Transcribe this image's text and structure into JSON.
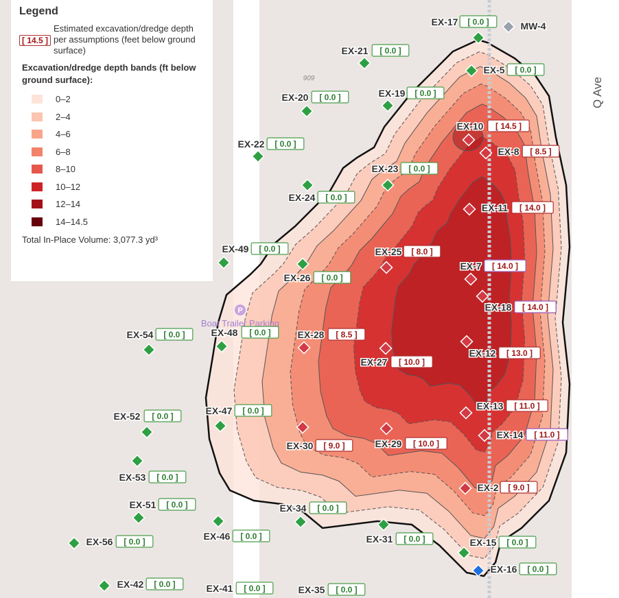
{
  "legend": {
    "title": "Legend",
    "sample_label": "[ 14.5 ]",
    "sample_text": "Estimated excavation/dredge depth per assumptions (feet below ground surface)",
    "bands_heading": "Excavation/dredge depth bands (ft below ground surface):",
    "bands": [
      {
        "label": "0–2",
        "color": "#fde3da"
      },
      {
        "label": "2–4",
        "color": "#fcc4b1"
      },
      {
        "label": "4–6",
        "color": "#f8a58a"
      },
      {
        "label": "6–8",
        "color": "#f2826a"
      },
      {
        "label": "8–10",
        "color": "#e6574b"
      },
      {
        "label": "10–12",
        "color": "#cf2227"
      },
      {
        "label": "12–14",
        "color": "#a20f16"
      },
      {
        "label": "14–14.5",
        "color": "#67000d"
      }
    ],
    "total": "Total In-Place Volume: 3,077.3 yd³"
  },
  "map_labels": {
    "street": "Q Ave",
    "lot": "909",
    "parking_icon": "P",
    "parking": "Boat Trailer Parking"
  },
  "points": [
    {
      "name": "EX-17",
      "label": "[ 0.0 ]",
      "marker_color": "#2ea043",
      "box_color": "#4a9d4a"
    },
    {
      "name": "MW-4",
      "marker_color": "#9aa3ad"
    },
    {
      "name": "EX-21",
      "label": "[ 0.0 ]",
      "marker_color": "#2ea043",
      "box_color": "#4a9d4a"
    },
    {
      "name": "EX-5",
      "label": "[ 0.0 ]",
      "marker_color": "#2ea043",
      "box_color": "#4a9d4a"
    },
    {
      "name": "EX-20",
      "label": "[ 0.0 ]",
      "marker_color": "#2ea043",
      "box_color": "#4a9d4a"
    },
    {
      "name": "EX-19",
      "label": "[ 0.0 ]",
      "marker_color": "#2ea043",
      "box_color": "#4a9d4a"
    },
    {
      "name": "EX-10",
      "label": "[ 14.5 ]",
      "marker_color": "#d33a45",
      "box_color": "#b03030"
    },
    {
      "name": "EX-8",
      "label": "[ 8.5 ]",
      "marker_color": "#d33a45",
      "box_color": "#b03030"
    },
    {
      "name": "EX-22",
      "label": "[ 0.0 ]",
      "marker_color": "#2ea043",
      "box_color": "#4a9d4a"
    },
    {
      "name": "EX-23",
      "label": "[ 0.0 ]",
      "marker_color": "#2ea043",
      "box_color": "#4a9d4a"
    },
    {
      "name": "EX-24",
      "label": "[ 0.0 ]",
      "marker_color": "#2ea043",
      "box_color": "#4a9d4a"
    },
    {
      "name": "EX-11",
      "label": "[ 14.0 ]",
      "marker_color": "#d33a45",
      "box_color": "#b03030"
    },
    {
      "name": "EX-49",
      "label": "[ 0.0 ]",
      "marker_color": "#2ea043",
      "box_color": "#4a9d4a"
    },
    {
      "name": "EX-25",
      "label": "[ 8.0 ]",
      "marker_color": "#d33a45",
      "box_color": "#b03030"
    },
    {
      "name": "EX-26",
      "label": "[ 0.0 ]",
      "marker_color": "#2ea043",
      "box_color": "#4a9d4a"
    },
    {
      "name": "EX-7",
      "label": "[ 14.0 ]",
      "marker_color": "#d33a45",
      "box_color": "#9b59b6"
    },
    {
      "name": "EX-18",
      "label": "[ 14.0 ]",
      "marker_color": "#d33a45",
      "box_color": "#9b59b6"
    },
    {
      "name": "EX-54",
      "label": "[ 0.0 ]",
      "marker_color": "#2ea043",
      "box_color": "#4a9d4a"
    },
    {
      "name": "EX-48",
      "label": "[ 0.0 ]",
      "marker_color": "#2ea043",
      "box_color": "#4a9d4a"
    },
    {
      "name": "EX-28",
      "label": "[ 8.5 ]",
      "marker_color": "#d33a45",
      "box_color": "#b03030"
    },
    {
      "name": "EX-27",
      "label": "[ 10.0 ]",
      "marker_color": "#d33a45",
      "box_color": "#b03030"
    },
    {
      "name": "EX-12",
      "label": "[ 13.0 ]",
      "marker_color": "#d33a45",
      "box_color": "#b03030"
    },
    {
      "name": "EX-52",
      "label": "[ 0.0 ]",
      "marker_color": "#2ea043",
      "box_color": "#4a9d4a"
    },
    {
      "name": "EX-47",
      "label": "[ 0.0 ]",
      "marker_color": "#2ea043",
      "box_color": "#4a9d4a"
    },
    {
      "name": "EX-13",
      "label": "[ 11.0 ]",
      "marker_color": "#d33a45",
      "box_color": "#b03030"
    },
    {
      "name": "EX-30",
      "label": "[ 9.0 ]",
      "marker_color": "#d33a45",
      "box_color": "#b03030"
    },
    {
      "name": "EX-29",
      "label": "[ 10.0 ]",
      "marker_color": "#d33a45",
      "box_color": "#b03030"
    },
    {
      "name": "EX-14",
      "label": "[ 11.0 ]",
      "marker_color": "#d33a45",
      "box_color": "#9b59b6"
    },
    {
      "name": "EX-53",
      "label": "[ 0.0 ]",
      "marker_color": "#2ea043",
      "box_color": "#4a9d4a"
    },
    {
      "name": "EX-2",
      "label": "[ 9.0 ]",
      "marker_color": "#d33a45",
      "box_color": "#b03030"
    },
    {
      "name": "EX-51",
      "label": "[ 0.0 ]",
      "marker_color": "#2ea043",
      "box_color": "#4a9d4a"
    },
    {
      "name": "EX-34",
      "label": "[ 0.0 ]",
      "marker_color": "#2ea043",
      "box_color": "#4a9d4a"
    },
    {
      "name": "EX-46",
      "label": "[ 0.0 ]",
      "marker_color": "#2ea043",
      "box_color": "#4a9d4a"
    },
    {
      "name": "EX-31",
      "label": "[ 0.0 ]",
      "marker_color": "#2ea043",
      "box_color": "#4a9d4a"
    },
    {
      "name": "EX-56",
      "label": "[ 0.0 ]",
      "marker_color": "#2ea043",
      "box_color": "#4a9d4a"
    },
    {
      "name": "EX-15",
      "label": "[ 0.0 ]",
      "marker_color": "#2ea043",
      "box_color": "#4a9d4a"
    },
    {
      "name": "EX-16",
      "label": "[ 0.0 ]",
      "marker_color": "#1f6fe0",
      "box_color": "#4a9d4a"
    },
    {
      "name": "EX-42",
      "label": "[ 0.0 ]",
      "marker_color": "#2ea043",
      "box_color": "#4a9d4a"
    },
    {
      "name": "EX-41",
      "label": "[ 0.0 ]",
      "marker_color": "#2ea043",
      "box_color": "#4a9d4a"
    },
    {
      "name": "EX-35",
      "label": "[ 0.0 ]",
      "marker_color": "#2ea043",
      "box_color": "#4a9d4a"
    }
  ]
}
